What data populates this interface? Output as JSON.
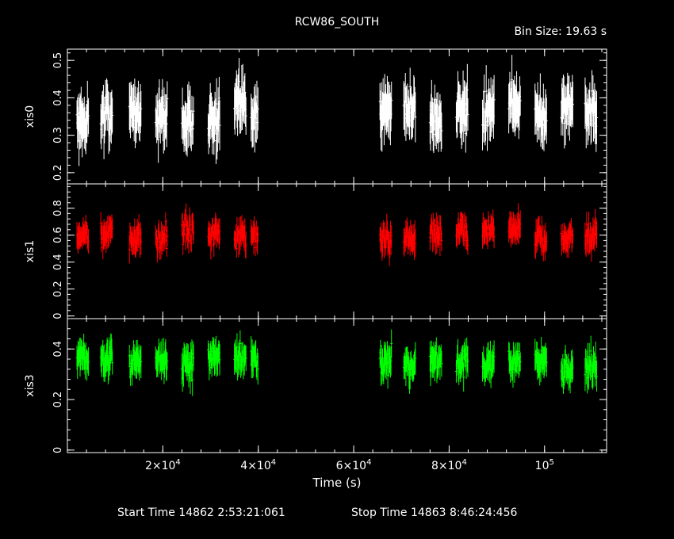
{
  "title": "RCW86_SOUTH",
  "bin_size": "Bin Size: 19.63 s",
  "footer": {
    "start": "Start Time 14862  2:53:21:061",
    "stop": "Stop Time 14863  8:46:24:456"
  },
  "chart_data": {
    "type": "line",
    "title": "RCW86_SOUTH",
    "xlabel": "Time (s)",
    "xlim": [
      0,
      113000
    ],
    "x_ticks": [
      {
        "value": 20000,
        "label": "2×10",
        "exp": "4"
      },
      {
        "value": 40000,
        "label": "4×10",
        "exp": "4"
      },
      {
        "value": 60000,
        "label": "6×10",
        "exp": "4"
      },
      {
        "value": 80000,
        "label": "8×10",
        "exp": "4"
      },
      {
        "value": 100000,
        "label": "10",
        "exp": "5"
      }
    ],
    "segments": [
      [
        2000,
        4500
      ],
      [
        7000,
        9500
      ],
      [
        13000,
        15500
      ],
      [
        18500,
        21000
      ],
      [
        24000,
        26500
      ],
      [
        29500,
        32000
      ],
      [
        35000,
        37500
      ],
      [
        38500,
        40000
      ],
      [
        65500,
        68000
      ],
      [
        70500,
        73000
      ],
      [
        76000,
        78500
      ],
      [
        81500,
        84000
      ],
      [
        87000,
        89500
      ],
      [
        92500,
        95000
      ],
      [
        98000,
        100500
      ],
      [
        103500,
        106000
      ],
      [
        108500,
        111000
      ]
    ],
    "panels": [
      {
        "name": "xis0",
        "color": "#ffffff",
        "ylim": [
          0.17,
          0.53
        ],
        "yticks": [
          0.2,
          0.3,
          0.4,
          0.5
        ],
        "ytick_labels": [
          "0.2",
          "0.3",
          "0.4",
          "0.5"
        ],
        "mean": 0.36,
        "spread": 0.045,
        "err": 0.055
      },
      {
        "name": "xis1",
        "color": "#ff0000",
        "ylim": [
          -0.02,
          0.98
        ],
        "yticks": [
          0,
          0.2,
          0.4,
          0.6,
          0.8
        ],
        "ytick_labels": [
          "0",
          "0.2",
          "0.4",
          "0.6",
          "0.8"
        ],
        "mean": 0.6,
        "spread": 0.08,
        "err": 0.08
      },
      {
        "name": "xis3",
        "color": "#00ff00",
        "ylim": [
          -0.01,
          0.52
        ],
        "yticks": [
          0,
          0.2,
          0.4
        ],
        "ytick_labels": [
          "0",
          "0.2",
          "0.4"
        ],
        "mean": 0.34,
        "spread": 0.045,
        "err": 0.05
      }
    ]
  }
}
